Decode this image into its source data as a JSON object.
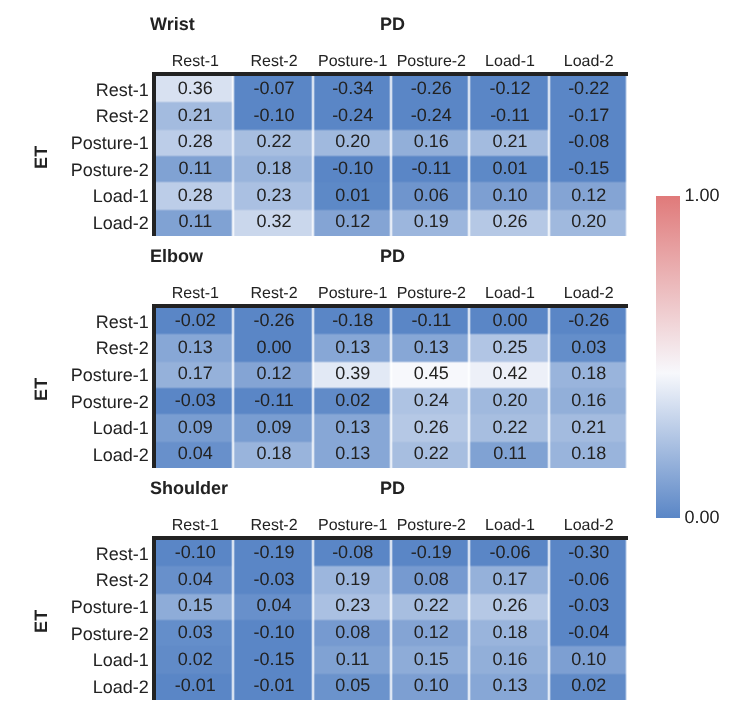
{
  "chart_data": [
    {
      "type": "heatmap",
      "title": "Wrist",
      "xlabel": "PD",
      "ylabel": "ET",
      "categories": [
        "Rest-1",
        "Rest-2",
        "Posture-1",
        "Posture-2",
        "Load-1",
        "Load-2"
      ],
      "y_categories": [
        "Rest-1",
        "Rest-2",
        "Posture-1",
        "Posture-2",
        "Load-1",
        "Load-2"
      ],
      "cells": [
        [
          0.36,
          -0.07,
          -0.34,
          -0.26,
          -0.12,
          -0.22
        ],
        [
          0.21,
          -0.1,
          -0.24,
          -0.24,
          -0.11,
          -0.17
        ],
        [
          0.28,
          0.22,
          0.2,
          0.16,
          0.21,
          -0.08
        ],
        [
          0.11,
          0.18,
          -0.1,
          -0.11,
          0.01,
          -0.15
        ],
        [
          0.28,
          0.23,
          0.01,
          0.06,
          0.1,
          0.12
        ],
        [
          0.11,
          0.32,
          0.12,
          0.19,
          0.26,
          0.2
        ]
      ],
      "cell_labels": [
        [
          "0.36",
          "-0.07",
          "-0.34",
          "-0.26",
          "-0.12",
          "-0.22"
        ],
        [
          "0.21",
          "-0.10",
          "-0.24",
          "-0.24",
          "-0.11",
          "-0.17"
        ],
        [
          "0.28",
          "0.22",
          "0.20",
          "0.16",
          "0.21",
          "-0.08"
        ],
        [
          "0.11",
          "0.18",
          "-0.10",
          "-0.11",
          "0.01",
          "-0.15"
        ],
        [
          "0.28",
          "0.23",
          "0.01",
          "0.06",
          "0.10",
          "0.12"
        ],
        [
          "0.11",
          "0.32",
          "0.12",
          "0.19",
          "0.26",
          "0.20"
        ]
      ]
    },
    {
      "type": "heatmap",
      "title": "Elbow",
      "xlabel": "PD",
      "ylabel": "ET",
      "categories": [
        "Rest-1",
        "Rest-2",
        "Posture-1",
        "Posture-2",
        "Load-1",
        "Load-2"
      ],
      "y_categories": [
        "Rest-1",
        "Rest-2",
        "Posture-1",
        "Posture-2",
        "Load-1",
        "Load-2"
      ],
      "cells": [
        [
          -0.02,
          -0.26,
          -0.18,
          -0.11,
          0.0,
          -0.26
        ],
        [
          0.13,
          0.0,
          0.13,
          0.13,
          0.25,
          0.03
        ],
        [
          0.17,
          0.12,
          0.39,
          0.45,
          0.42,
          0.18
        ],
        [
          -0.03,
          -0.11,
          0.02,
          0.24,
          0.2,
          0.16
        ],
        [
          0.09,
          0.09,
          0.13,
          0.26,
          0.22,
          0.21
        ],
        [
          0.04,
          0.18,
          0.13,
          0.22,
          0.11,
          0.18
        ]
      ],
      "cell_labels": [
        [
          "-0.02",
          "-0.26",
          "-0.18",
          "-0.11",
          "0.00",
          "-0.26"
        ],
        [
          "0.13",
          "0.00",
          "0.13",
          "0.13",
          "0.25",
          "0.03"
        ],
        [
          "0.17",
          "0.12",
          "0.39",
          "0.45",
          "0.42",
          "0.18"
        ],
        [
          "-0.03",
          "-0.11",
          "0.02",
          "0.24",
          "0.20",
          "0.16"
        ],
        [
          "0.09",
          "0.09",
          "0.13",
          "0.26",
          "0.22",
          "0.21"
        ],
        [
          "0.04",
          "0.18",
          "0.13",
          "0.22",
          "0.11",
          "0.18"
        ]
      ],
      "clim": [
        0,
        1
      ],
      "cticks": [
        {
          "value": 0,
          "label": "0.00"
        },
        {
          "value": 1,
          "label": "1.00"
        }
      ]
    },
    {
      "type": "heatmap",
      "title": "Shoulder",
      "xlabel": "PD",
      "ylabel": "ET",
      "categories": [
        "Rest-1",
        "Rest-2",
        "Posture-1",
        "Posture-2",
        "Load-1",
        "Load-2"
      ],
      "y_categories": [
        "Rest-1",
        "Rest-2",
        "Posture-1",
        "Posture-2",
        "Load-1",
        "Load-2"
      ],
      "cells": [
        [
          -0.1,
          -0.19,
          -0.08,
          -0.19,
          -0.06,
          -0.3
        ],
        [
          0.04,
          -0.03,
          0.19,
          0.08,
          0.17,
          -0.06
        ],
        [
          0.15,
          0.04,
          0.23,
          0.22,
          0.26,
          -0.03
        ],
        [
          0.03,
          -0.1,
          0.08,
          0.12,
          0.18,
          -0.04
        ],
        [
          0.02,
          -0.15,
          0.11,
          0.15,
          0.16,
          0.1
        ],
        [
          -0.01,
          -0.01,
          0.05,
          0.1,
          0.13,
          0.02
        ]
      ],
      "cell_labels": [
        [
          "-0.10",
          "-0.19",
          "-0.08",
          "-0.19",
          "-0.06",
          "-0.30"
        ],
        [
          "0.04",
          "-0.03",
          "0.19",
          "0.08",
          "0.17",
          "-0.06"
        ],
        [
          "0.15",
          "0.04",
          "0.23",
          "0.22",
          "0.26",
          "-0.03"
        ],
        [
          "0.03",
          "-0.10",
          "0.08",
          "0.12",
          "0.18",
          "-0.04"
        ],
        [
          "0.02",
          "-0.15",
          "0.11",
          "0.15",
          "0.16",
          "0.10"
        ],
        [
          "-0.01",
          "-0.01",
          "0.05",
          "0.10",
          "0.13",
          "0.02"
        ]
      ]
    }
  ]
}
